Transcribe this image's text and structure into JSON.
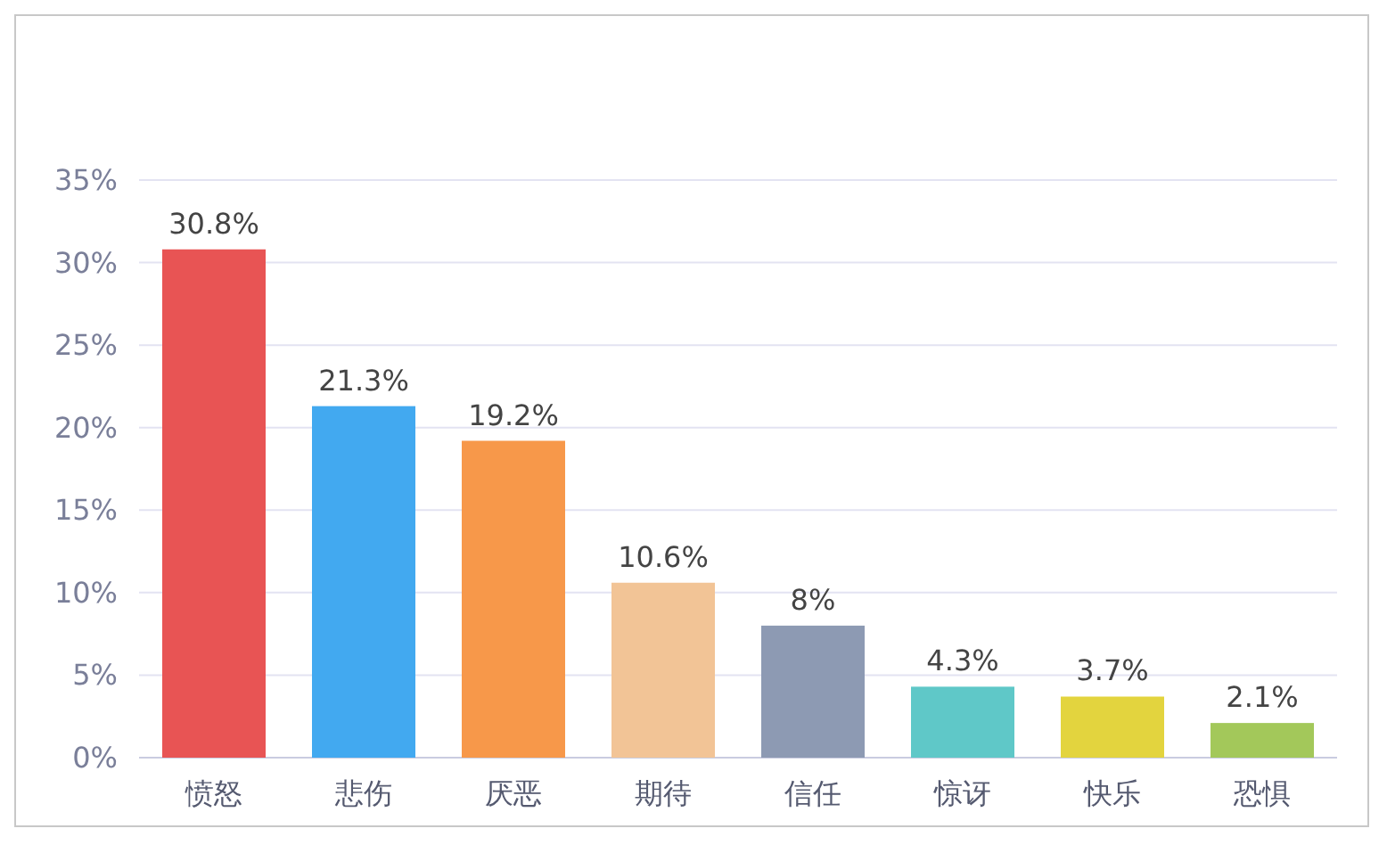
{
  "chart_data": {
    "type": "bar",
    "categories": [
      "愤怒",
      "悲伤",
      "厌恶",
      "期待",
      "信任",
      "惊讶",
      "快乐",
      "恐惧"
    ],
    "values": [
      30.8,
      21.3,
      19.2,
      10.6,
      8,
      4.3,
      3.7,
      2.1
    ],
    "colors": [
      "#e85454",
      "#42a9f0",
      "#f7984a",
      "#f2c496",
      "#8d9ab3",
      "#5fc8c8",
      "#e3d43e",
      "#a3c85a"
    ],
    "value_labels": [
      "30.8%",
      "21.3%",
      "19.2%",
      "10.6%",
      "8%",
      "4.3%",
      "3.7%",
      "2.1%"
    ],
    "ylim": [
      0,
      35
    ],
    "yticks": [
      {
        "value": 0,
        "label": "0%"
      },
      {
        "value": 5,
        "label": "5%"
      },
      {
        "value": 10,
        "label": "10%"
      },
      {
        "value": 15,
        "label": "15%"
      },
      {
        "value": 20,
        "label": "20%"
      },
      {
        "value": 25,
        "label": "25%"
      },
      {
        "value": 30,
        "label": "30%"
      },
      {
        "value": 35,
        "label": "35%"
      }
    ],
    "grid": "y"
  }
}
